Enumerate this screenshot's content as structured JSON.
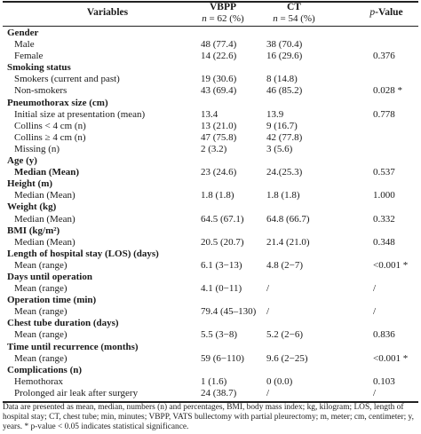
{
  "header": {
    "variables": "Variables",
    "vbpp_title": "VBPP",
    "vbpp_n": "n = 62 (%)",
    "ct_title": "CT",
    "ct_n": "n = 54 (%)",
    "p_value": "p-Value"
  },
  "rows": [
    {
      "label": "Gender",
      "head": true
    },
    {
      "label": "Male",
      "v1": "48 (77.4)",
      "v2": "38 (70.4)",
      "p": ""
    },
    {
      "label": "Female",
      "v1": "14 (22.6)",
      "v2": "16 (29.6)",
      "p": "0.376"
    },
    {
      "label": "Smoking status",
      "head": true
    },
    {
      "label": "Smokers (current and past)",
      "v1": "19 (30.6)",
      "v2": "8 (14.8)",
      "p": ""
    },
    {
      "label": "Non-smokers",
      "v1": "43 (69.4)",
      "v2": "46 (85.2)",
      "p": "0.028 *"
    },
    {
      "label": "Pneumothorax size (cm)",
      "head": true
    },
    {
      "label": "Initial size at presentation (mean)",
      "v1": "13.4",
      "v2": "13.9",
      "p": "0.778"
    },
    {
      "label": "Collins < 4 cm (n)",
      "v1": "13 (21.0)",
      "v2": "9 (16.7)",
      "p": ""
    },
    {
      "label": "Collins ≥ 4 cm (n)",
      "v1": "47 (75.8)",
      "v2": "42 (77.8)",
      "p": ""
    },
    {
      "label": "Missing (n)",
      "v1": "2 (3.2)",
      "v2": "3 (5.6)",
      "p": ""
    },
    {
      "label": "Age (y)",
      "head": true
    },
    {
      "label": "Median (Mean)",
      "v1": "23 (24.6)",
      "v2": "24.(25.3)",
      "p": "0.537",
      "boldlabel": true
    },
    {
      "label": "Height (m)",
      "head": true
    },
    {
      "label": "Median (Mean)",
      "v1": "1.8 (1.8)",
      "v2": "1.8 (1.8)",
      "p": "1.000"
    },
    {
      "label": "Weight (kg)",
      "head": true
    },
    {
      "label": "Median (Mean)",
      "v1": "64.5 (67.1)",
      "v2": "64.8 (66.7)",
      "p": "0.332"
    },
    {
      "label": "BMI (kg/m²)",
      "head": true
    },
    {
      "label": "Median (Mean)",
      "v1": "20.5 (20.7)",
      "v2": "21.4 (21.0)",
      "p": "0.348"
    },
    {
      "label": "Length of hospital stay (LOS) (days)",
      "head": true
    },
    {
      "label": "Mean (range)",
      "v1": "6.1 (3−13)",
      "v2": "4.8 (2−7)",
      "p": "<0.001 *"
    },
    {
      "label": "Days until operation",
      "head": true
    },
    {
      "label": "Mean (range)",
      "v1": "4.1 (0−11)",
      "v2": "/",
      "p": "/"
    },
    {
      "label": "Operation time (min)",
      "head": true
    },
    {
      "label": "Mean (range)",
      "v1": "79.4 (45–130)",
      "v2": "/",
      "p": "/"
    },
    {
      "label": "Chest tube duration (days)",
      "head": true
    },
    {
      "label": "Mean (range)",
      "v1": "5.5 (3−8)",
      "v2": "5.2 (2−6)",
      "p": "0.836"
    },
    {
      "label": "Time until recurrence (months)",
      "head": true
    },
    {
      "label": "Mean (range)",
      "v1": "59 (6−110)",
      "v2": "9.6 (2−25)",
      "p": "<0.001 *"
    },
    {
      "label": "Complications (n)",
      "head": true
    },
    {
      "label": "Hemothorax",
      "v1": "1 (1.6)",
      "v2": "0 (0.0)",
      "p": "0.103"
    },
    {
      "label": "Prolonged air leak after surgery",
      "v1": "24 (38.7)",
      "v2": "/",
      "p": "/"
    }
  ],
  "footnote": "Data are presented as mean, median, numbers (n) and percentages, BMI, body mass index; kg, kilogram; LOS, length of hospital stay; CT, chest tube; min, minutes; VBPP, VATS bullectomy with partial pleurectomy; m, meter; cm, centimeter; y, years. * p-value < 0.05 indicates statistical significance."
}
